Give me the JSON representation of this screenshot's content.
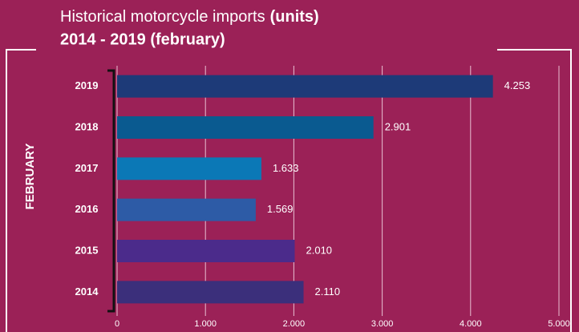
{
  "chart_data": {
    "type": "hbar",
    "title": "Historical motorcycle imports",
    "title_emphasis": "(units)",
    "subtitle": "2014 - 2019 (february)",
    "y_axis_label": "FEBRUARY",
    "categories": [
      "2019",
      "2018",
      "2017",
      "2016",
      "2015",
      "2014"
    ],
    "values": [
      4253,
      2901,
      1633,
      1569,
      2010,
      2110
    ],
    "value_labels": [
      "4.253",
      "2.901",
      "1.633",
      "1.569",
      "2.010",
      "2.110"
    ],
    "colors": [
      "#1d3a78",
      "#0a5a90",
      "#0b78b6",
      "#2d5ba6",
      "#4b2b8b",
      "#3b2f7b"
    ],
    "xlim": [
      0,
      5000
    ],
    "xticks": [
      0,
      {
        "value": 1000,
        "label": "1.000"
      },
      {
        "value": 2000,
        "label": "2.000"
      },
      {
        "value": 3000,
        "label": "3.000"
      },
      {
        "value": 4000,
        "label": "4.000"
      },
      {
        "value": 5000,
        "label": "5.000"
      }
    ],
    "grid": true
  }
}
